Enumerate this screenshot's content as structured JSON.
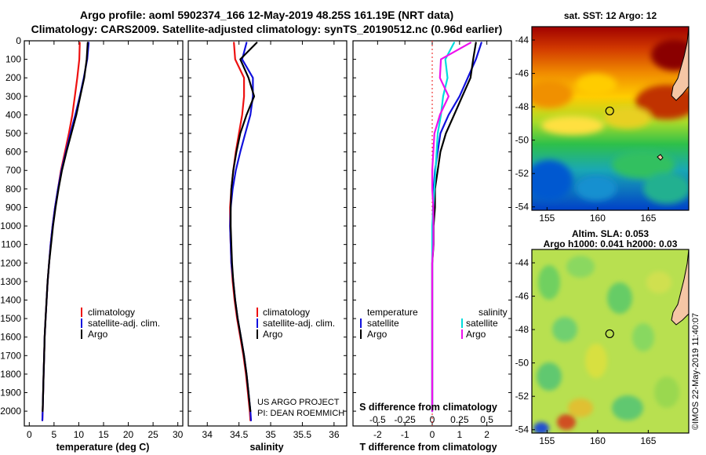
{
  "header": {
    "line1": "Argo profile: aoml 5902374_166 12-May-2019 48.25S 161.19E (NRT data)",
    "line2": "Climatology: CARS2009. Satellite-adjusted climatology: synTS_20190512.nc (0.96d earlier)"
  },
  "colors": {
    "climatology": "#ee1111",
    "satellite": "#1111dd",
    "argo": "#000000",
    "sal_satellite": "#00dddd",
    "sal_argo": "#ee11ee",
    "land": "#f5c6a5"
  },
  "chart_data": [
    {
      "type": "line",
      "name": "temperature",
      "xlabel": "temperature (deg C)",
      "ylabel": "",
      "xlim": [
        -1,
        31
      ],
      "ylim": [
        2080,
        0
      ],
      "xticks": [
        0,
        5,
        10,
        15,
        20,
        25,
        30
      ],
      "xtick_labels": [
        "0",
        "5",
        "10",
        "15",
        "20",
        "25",
        "30"
      ],
      "yticks": [
        0,
        100,
        200,
        300,
        400,
        500,
        600,
        700,
        800,
        900,
        1000,
        1100,
        1200,
        1300,
        1400,
        1500,
        1600,
        1700,
        1800,
        1900,
        2000
      ],
      "ytick_labels": [
        "0",
        "100",
        "200",
        "300",
        "400",
        "500",
        "600",
        "700",
        "800",
        "900",
        "1000",
        "1100",
        "1200",
        "1300",
        "1400",
        "1500",
        "1600",
        "1700",
        "1800",
        "1900",
        "2000"
      ],
      "legend": [
        "climatology",
        "satellite-adj. clim.",
        "Argo"
      ],
      "series": [
        {
          "name": "climatology",
          "color": "#ee1111",
          "x": [
            10.2,
            10.1,
            9.7,
            9.2,
            8.7,
            8.0,
            7.2,
            6.4,
            5.8,
            5.2,
            4.7,
            4.3,
            4.0,
            3.7,
            3.5,
            3.3,
            3.1,
            3.0,
            2.9,
            2.8,
            2.7,
            2.65
          ],
          "y": [
            10,
            100,
            200,
            300,
            400,
            500,
            600,
            700,
            800,
            900,
            1000,
            1100,
            1200,
            1300,
            1400,
            1500,
            1600,
            1700,
            1800,
            1900,
            2000,
            2050
          ]
        },
        {
          "name": "satellite-adj. clim.",
          "color": "#1111dd",
          "x": [
            12.0,
            11.7,
            11.0,
            10.2,
            9.3,
            8.3,
            7.4,
            6.5,
            5.8,
            5.2,
            4.7,
            4.3,
            4.0,
            3.7,
            3.5,
            3.3,
            3.1,
            3.0,
            2.9,
            2.8,
            2.7,
            2.65
          ],
          "y": [
            10,
            100,
            200,
            300,
            400,
            500,
            600,
            700,
            800,
            900,
            1000,
            1100,
            1200,
            1300,
            1400,
            1500,
            1600,
            1700,
            1800,
            1900,
            2000,
            2050
          ]
        },
        {
          "name": "Argo",
          "color": "#000000",
          "x": [
            11.8,
            11.6,
            11.1,
            10.3,
            9.5,
            8.5,
            7.5,
            6.6,
            5.9,
            5.3,
            4.8,
            4.4,
            4.0,
            3.7,
            3.5,
            3.3,
            3.1,
            3.0,
            2.9,
            2.8,
            2.7
          ],
          "y": [
            10,
            100,
            200,
            300,
            400,
            500,
            600,
            700,
            800,
            900,
            1000,
            1100,
            1200,
            1300,
            1400,
            1500,
            1600,
            1700,
            1800,
            1900,
            2000
          ]
        }
      ]
    },
    {
      "type": "line",
      "name": "salinity",
      "xlabel": "salinity",
      "ylabel": "",
      "xlim": [
        33.7,
        36.2
      ],
      "ylim": [
        2080,
        0
      ],
      "xticks": [
        34,
        34.5,
        35,
        35.5,
        36
      ],
      "xtick_labels": [
        "34",
        "34.5",
        "35",
        "35.5",
        "36"
      ],
      "legend": [
        "climatology",
        "satellite-adj. clim.",
        "Argo"
      ],
      "series": [
        {
          "name": "climatology",
          "color": "#ee1111",
          "x": [
            34.42,
            34.44,
            34.58,
            34.58,
            34.55,
            34.5,
            34.45,
            34.41,
            34.38,
            34.36,
            34.36,
            34.37,
            34.38,
            34.4,
            34.43,
            34.47,
            34.52,
            34.57,
            34.61,
            34.64,
            34.67,
            34.68
          ],
          "y": [
            10,
            100,
            200,
            300,
            400,
            500,
            600,
            700,
            800,
            900,
            1000,
            1100,
            1200,
            1300,
            1400,
            1500,
            1600,
            1700,
            1800,
            1900,
            2000,
            2050
          ]
        },
        {
          "name": "satellite-adj. clim.",
          "color": "#1111dd",
          "x": [
            34.62,
            34.55,
            34.72,
            34.72,
            34.68,
            34.6,
            34.52,
            34.45,
            34.4,
            34.37,
            34.36,
            34.37,
            34.38,
            34.41,
            34.44,
            34.48,
            34.53,
            34.58,
            34.62,
            34.65,
            34.68,
            34.69
          ],
          "y": [
            10,
            100,
            200,
            300,
            400,
            500,
            600,
            700,
            800,
            900,
            1000,
            1100,
            1200,
            1300,
            1400,
            1500,
            1600,
            1700,
            1800,
            1900,
            2000,
            2050
          ]
        },
        {
          "name": "Argo",
          "color": "#000000",
          "x": [
            34.78,
            34.52,
            34.65,
            34.74,
            34.62,
            34.52,
            34.46,
            34.41,
            34.38,
            34.37,
            34.37,
            34.38,
            34.39,
            34.41,
            34.44,
            34.48,
            34.53,
            34.58,
            34.62,
            34.65,
            34.68
          ],
          "y": [
            10,
            100,
            200,
            300,
            400,
            500,
            600,
            700,
            800,
            900,
            1000,
            1100,
            1200,
            1300,
            1400,
            1500,
            1600,
            1700,
            1800,
            1900,
            2000
          ]
        }
      ]
    },
    {
      "type": "line",
      "name": "difference",
      "xlabel": "T difference from climatology",
      "top_label": "S difference from climatology",
      "xlim": [
        -2.9,
        2.9
      ],
      "ylim": [
        2080,
        0
      ],
      "xticks": [
        -2,
        -1,
        0,
        1,
        2
      ],
      "xtick_labels": [
        "-2",
        "-1",
        "0",
        "1",
        "2"
      ],
      "sticks": [
        -0.5,
        -0.25,
        0,
        0.25,
        0.5
      ],
      "stick_labels": [
        "-0.5",
        "-0.25",
        "0",
        "0.25",
        "0.5"
      ],
      "legend": {
        "temperature_heading": "temperature",
        "salinity_heading": "salinity",
        "t_items": [
          "satellite",
          "Argo"
        ],
        "s_items": [
          "satellite",
          "Argo"
        ]
      },
      "series": [
        {
          "name": "T satellite",
          "color": "#1111dd",
          "x": [
            1.8,
            1.6,
            1.3,
            1.0,
            0.6,
            0.3,
            0.2,
            0.1,
            0.05,
            0.03,
            0.02,
            0.01,
            0.0,
            0.0,
            0.0,
            0.0,
            0.0,
            0.0,
            0.0,
            0.0,
            0.0
          ],
          "y": [
            10,
            100,
            200,
            300,
            400,
            500,
            600,
            700,
            800,
            900,
            1000,
            1100,
            1200,
            1300,
            1400,
            1500,
            1600,
            1700,
            1800,
            1900,
            2000
          ]
        },
        {
          "name": "T Argo",
          "color": "#000000",
          "x": [
            1.6,
            1.5,
            1.4,
            1.1,
            0.8,
            0.5,
            0.3,
            0.2,
            0.1,
            0.1,
            0.05,
            0.05,
            0.0,
            0.0,
            0.0,
            0.0,
            0.0,
            0.0,
            0.0,
            0.0,
            0.0
          ],
          "y": [
            10,
            100,
            200,
            300,
            400,
            500,
            600,
            700,
            800,
            900,
            1000,
            1100,
            1200,
            1300,
            1400,
            1500,
            1600,
            1700,
            1800,
            1900,
            2000
          ]
        },
        {
          "name": "S satellite",
          "color": "#00dddd",
          "x": [
            0.2,
            0.12,
            0.14,
            0.1,
            0.08,
            0.05,
            0.04,
            0.03,
            0.02,
            0.01,
            0.0,
            0.0,
            0.0,
            0.0,
            0.0,
            0.0,
            0.0,
            0.0,
            0.0,
            0.0,
            0.0
          ],
          "y": [
            10,
            100,
            200,
            300,
            400,
            500,
            600,
            700,
            800,
            900,
            1000,
            1100,
            1200,
            1300,
            1400,
            1500,
            1600,
            1700,
            1800,
            1900,
            2000
          ]
        },
        {
          "name": "S Argo",
          "color": "#ee11ee",
          "x": [
            0.35,
            0.08,
            0.07,
            0.15,
            0.07,
            0.02,
            0.01,
            0.0,
            0.0,
            0.01,
            0.01,
            0.01,
            0.0,
            0.0,
            0.0,
            0.0,
            0.0,
            0.0,
            0.0,
            0.0,
            0.0
          ],
          "y": [
            10,
            100,
            200,
            300,
            400,
            500,
            600,
            700,
            800,
            900,
            1000,
            1100,
            1200,
            1300,
            1400,
            1500,
            1600,
            1700,
            1800,
            1900,
            2000
          ]
        }
      ]
    },
    {
      "type": "heatmap",
      "name": "sst-map",
      "title": "sat. SST: 12 Argo: 12",
      "xlim": [
        153.5,
        169
      ],
      "ylim": [
        -54.2,
        -43.2
      ],
      "xticks": [
        155,
        160,
        165
      ],
      "xtick_labels": [
        "155",
        "160",
        "165"
      ],
      "yticks": [
        -44,
        -46,
        -48,
        -50,
        -52,
        -54
      ],
      "ytick_labels": [
        "-44",
        "-46",
        "-48",
        "-50",
        "-52",
        "-54"
      ],
      "marker": {
        "lon": 161.19,
        "lat": -48.25
      }
    },
    {
      "type": "heatmap",
      "name": "sla-map",
      "title": "Altim. SLA: 0.053",
      "subtitle": "Argo h1000: 0.041 h2000: 0.03",
      "xlim": [
        153.5,
        169
      ],
      "ylim": [
        -54.2,
        -43.2
      ],
      "xticks": [
        155,
        160,
        165
      ],
      "xtick_labels": [
        "155",
        "160",
        "165"
      ],
      "yticks": [
        -44,
        -46,
        -48,
        -50,
        -52,
        -54
      ],
      "ytick_labels": [
        "-44",
        "-46",
        "-48",
        "-50",
        "-52",
        "-54"
      ],
      "marker": {
        "lon": 161.19,
        "lat": -48.25
      }
    }
  ],
  "credits": {
    "project": "US ARGO PROJECT",
    "pi": "PI: DEAN ROEMMICH",
    "imos": "©IMOS 22-May-2019 11:40:07"
  }
}
